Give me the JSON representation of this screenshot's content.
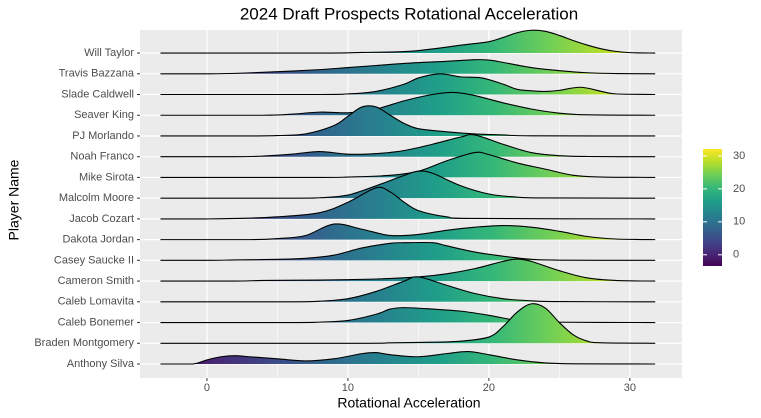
{
  "chart_data": {
    "type": "ridgeline",
    "title": "2024 Draft Prospects Rotational Acceleration",
    "x_label": "Rotational Acceleration",
    "y_label": "Player Name",
    "categories": [
      "Anthony Silva",
      "Braden Montgomery",
      "Caleb Bonemer",
      "Caleb Lomavita",
      "Cameron Smith",
      "Casey Saucke II",
      "Dakota Jordan",
      "Jacob Cozart",
      "Malcolm Moore",
      "Mike Sirota",
      "Noah Franco",
      "PJ Morlando",
      "Seaver King",
      "Slade Caldwell",
      "Travis Bazzana",
      "Will Taylor"
    ],
    "series": [
      {
        "x": [
          -3.3,
          -1,
          0,
          1,
          2,
          3,
          5,
          7,
          9,
          11,
          12,
          13,
          15,
          17,
          18.5,
          20,
          22,
          24,
          26,
          31.8
        ],
        "values": [
          0,
          0,
          0.2,
          0.35,
          0.4,
          0.35,
          0.25,
          0.15,
          0.25,
          0.5,
          0.55,
          0.45,
          0.35,
          0.5,
          0.6,
          0.45,
          0.2,
          0.05,
          0.01,
          0
        ]
      },
      {
        "x": [
          -3.3,
          11,
          13,
          16,
          18,
          20,
          21,
          22,
          23,
          24,
          25,
          26,
          27,
          28,
          31.8
        ],
        "values": [
          0,
          0,
          0.02,
          0.05,
          0.1,
          0.3,
          0.8,
          1.5,
          1.9,
          1.7,
          1.0,
          0.4,
          0.1,
          0.02,
          0
        ]
      },
      {
        "x": [
          -3.3,
          6,
          8,
          10,
          12,
          13,
          14,
          16,
          18,
          20,
          22,
          24,
          31.8
        ],
        "values": [
          0,
          0,
          0.02,
          0.1,
          0.4,
          0.65,
          0.72,
          0.65,
          0.55,
          0.35,
          0.1,
          0.02,
          0
        ]
      },
      {
        "x": [
          -3.3,
          6,
          8,
          10,
          12,
          14,
          15,
          17,
          19,
          21,
          23,
          25,
          31.8
        ],
        "values": [
          0,
          0,
          0.03,
          0.15,
          0.5,
          1.0,
          1.2,
          0.8,
          0.4,
          0.15,
          0.05,
          0.01,
          0
        ]
      },
      {
        "x": [
          -3.3,
          2,
          4,
          8,
          12,
          15,
          17,
          19,
          21,
          22,
          23,
          25,
          27,
          29,
          31.8
        ],
        "values": [
          0,
          0,
          0.03,
          0.05,
          0.1,
          0.2,
          0.35,
          0.6,
          0.95,
          1.06,
          0.95,
          0.5,
          0.15,
          0.03,
          0
        ]
      },
      {
        "x": [
          -3.3,
          0,
          2,
          5,
          7,
          9,
          11,
          13,
          14,
          16,
          17,
          19,
          21,
          23,
          25,
          31.8
        ],
        "values": [
          0,
          0,
          0.02,
          0.05,
          0.1,
          0.25,
          0.6,
          0.82,
          0.85,
          0.85,
          0.7,
          0.4,
          0.2,
          0.05,
          0.01,
          0
        ]
      },
      {
        "x": [
          -3.3,
          3,
          5,
          7,
          9,
          11,
          13,
          15,
          17,
          19,
          21,
          23,
          25,
          27,
          29,
          31.8
        ],
        "values": [
          0,
          0,
          0.05,
          0.2,
          0.75,
          0.5,
          0.2,
          0.25,
          0.45,
          0.6,
          0.68,
          0.6,
          0.4,
          0.15,
          0.03,
          0
        ]
      },
      {
        "x": [
          -3.3,
          0,
          2,
          5,
          8,
          10,
          12,
          13,
          14,
          15,
          17,
          19,
          31.8
        ],
        "values": [
          0,
          0,
          0.02,
          0.1,
          0.3,
          0.8,
          1.5,
          1.3,
          0.8,
          0.4,
          0.1,
          0.02,
          0
        ]
      },
      {
        "x": [
          -3.3,
          6,
          8,
          10,
          12,
          14,
          15,
          16,
          18,
          20,
          22,
          24,
          31.8
        ],
        "values": [
          0,
          0,
          0.02,
          0.15,
          0.6,
          1.1,
          1.3,
          1.2,
          0.6,
          0.2,
          0.05,
          0.01,
          0
        ]
      },
      {
        "x": [
          -3.3,
          8,
          10,
          13,
          15,
          17,
          19,
          20,
          22,
          24,
          26,
          28,
          31.8
        ],
        "values": [
          0,
          0,
          0.02,
          0.1,
          0.3,
          0.8,
          1.2,
          1.1,
          0.7,
          0.4,
          0.1,
          0.02,
          0
        ]
      },
      {
        "x": [
          -3.3,
          2,
          4,
          6,
          8,
          10,
          12,
          14,
          16,
          18,
          19,
          21,
          23,
          25,
          27,
          31.8
        ],
        "values": [
          0,
          0,
          0.03,
          0.12,
          0.25,
          0.12,
          0.15,
          0.3,
          0.6,
          0.95,
          1.05,
          0.6,
          0.2,
          0.05,
          0.01,
          0
        ]
      },
      {
        "x": [
          -3.3,
          3,
          5,
          7,
          9,
          10,
          11,
          12,
          13,
          14,
          15,
          17,
          19,
          21,
          23,
          31.8
        ],
        "values": [
          0,
          0,
          0.02,
          0.1,
          0.5,
          0.95,
          1.4,
          1.4,
          1.0,
          0.6,
          0.35,
          0.2,
          0.1,
          0.05,
          0.01,
          0
        ]
      },
      {
        "x": [
          -3.3,
          4,
          6,
          8,
          10,
          12,
          14,
          16,
          17.5,
          19,
          21,
          23,
          25,
          27,
          31.8
        ],
        "values": [
          0,
          0,
          0.05,
          0.15,
          0.12,
          0.3,
          0.7,
          1.0,
          1.1,
          0.95,
          0.6,
          0.3,
          0.1,
          0.02,
          0
        ]
      },
      {
        "x": [
          -3.3,
          8,
          10,
          12,
          14,
          15,
          16.5,
          18,
          19.5,
          21,
          22,
          23,
          24,
          25,
          26.5,
          28,
          29,
          31.8
        ],
        "values": [
          0,
          0,
          0.03,
          0.15,
          0.5,
          0.8,
          1.0,
          0.85,
          0.8,
          0.5,
          0.25,
          0.18,
          0.15,
          0.2,
          0.35,
          0.15,
          0.03,
          0
        ]
      },
      {
        "x": [
          -3.3,
          0,
          2,
          5,
          8,
          10,
          12,
          14,
          16,
          17,
          19,
          20,
          21,
          23,
          25,
          27,
          29,
          31.8
        ],
        "values": [
          0,
          0,
          0.02,
          0.1,
          0.2,
          0.3,
          0.4,
          0.5,
          0.57,
          0.6,
          0.68,
          0.66,
          0.55,
          0.3,
          0.15,
          0.05,
          0.01,
          0
        ]
      },
      {
        "x": [
          -3.3,
          8,
          11,
          14,
          16,
          18,
          20,
          21,
          22,
          23,
          24,
          25,
          26,
          27,
          28,
          29,
          30,
          31.8
        ],
        "values": [
          0,
          0,
          0.03,
          0.07,
          0.2,
          0.38,
          0.55,
          0.75,
          0.98,
          1.1,
          1.05,
          0.85,
          0.6,
          0.38,
          0.2,
          0.08,
          0.02,
          0
        ]
      }
    ],
    "xlim": [
      -4.75,
      33.7
    ],
    "xticks": [
      0,
      10,
      20,
      30
    ],
    "xminor_ticks": [
      5,
      15,
      25
    ],
    "grid": true,
    "colorbar": {
      "lim": [
        -3.4,
        32.1
      ],
      "ticks": [
        0,
        10,
        20,
        30
      ],
      "colors": [
        "#440154",
        "#482878",
        "#3e4989",
        "#31688e",
        "#26828e",
        "#1f9e89",
        "#35b779",
        "#6ece58",
        "#b5de2b",
        "#fde725"
      ]
    }
  }
}
